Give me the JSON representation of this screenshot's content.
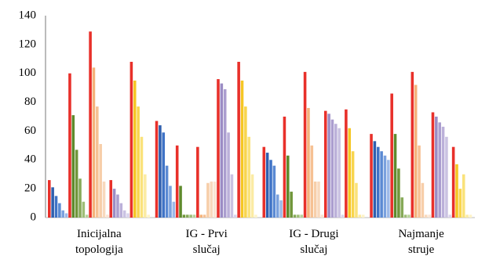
{
  "chart_data": {
    "type": "bar",
    "categories": [
      [
        "Inicijalna",
        "topologija"
      ],
      [
        "IG - Prvi",
        "slučaj"
      ],
      [
        "IG - Drugi",
        "slučaj"
      ],
      [
        "Najmanje",
        "struje"
      ]
    ],
    "ylim": [
      0,
      140
    ],
    "yticks": [
      0,
      20,
      40,
      60,
      80,
      100,
      120,
      140
    ],
    "grid": false,
    "series": [
      {
        "color": "#e8302a",
        "values": [
          26,
          67,
          49,
          58
        ]
      },
      {
        "color": "#2f5fae",
        "values": [
          21,
          64,
          45,
          53
        ]
      },
      {
        "color": "#3f73c6",
        "values": [
          15,
          59,
          40,
          49
        ]
      },
      {
        "color": "#5b8ad3",
        "values": [
          10,
          36,
          36,
          46
        ]
      },
      {
        "color": "#7aa1de",
        "values": [
          5,
          22,
          16,
          43
        ]
      },
      {
        "color": "#9cb9e8",
        "values": [
          3,
          11,
          12,
          40
        ]
      },
      {
        "color": "#e8302a",
        "values": [
          100,
          50,
          70,
          86
        ]
      },
      {
        "color": "#5e8a2c",
        "values": [
          71,
          22,
          43,
          58
        ]
      },
      {
        "color": "#70963a",
        "values": [
          47,
          2,
          18,
          34
        ]
      },
      {
        "color": "#86a958",
        "values": [
          27,
          2,
          2,
          14
        ]
      },
      {
        "color": "#9ebd76",
        "values": [
          11,
          2,
          2,
          2
        ]
      },
      {
        "color": "#b8d199",
        "values": [
          2,
          2,
          2,
          2
        ]
      },
      {
        "color": "#e8302a",
        "values": [
          129,
          49,
          101,
          101
        ]
      },
      {
        "color": "#f5b27a",
        "values": [
          104,
          2,
          76,
          92
        ]
      },
      {
        "color": "#f6c193",
        "values": [
          77,
          2,
          50,
          50
        ]
      },
      {
        "color": "#f7cea9",
        "values": [
          51,
          24,
          25,
          24
        ]
      },
      {
        "color": "#f8d9bd",
        "values": [
          25,
          25,
          25,
          2
        ]
      },
      {
        "color": "#fae4d2",
        "values": [
          2,
          25,
          2,
          2
        ]
      },
      {
        "color": "#e8302a",
        "values": [
          26,
          96,
          74,
          73
        ]
      },
      {
        "color": "#9b8cc4",
        "values": [
          20,
          93,
          72,
          70
        ]
      },
      {
        "color": "#ab9ecf",
        "values": [
          16,
          89,
          68,
          66
        ]
      },
      {
        "color": "#bbb0d9",
        "values": [
          10,
          59,
          65,
          63
        ]
      },
      {
        "color": "#cac2e2",
        "values": [
          5,
          30,
          62,
          56
        ]
      },
      {
        "color": "#d9d3eb",
        "values": [
          3,
          2,
          2,
          2
        ]
      },
      {
        "color": "#e8302a",
        "values": [
          108,
          108,
          75,
          49
        ]
      },
      {
        "color": "#f5c623",
        "values": [
          95,
          95,
          62,
          37
        ]
      },
      {
        "color": "#f8d54d",
        "values": [
          77,
          77,
          46,
          20
        ]
      },
      {
        "color": "#fae27a",
        "values": [
          56,
          56,
          24,
          30
        ]
      },
      {
        "color": "#fbeba3",
        "values": [
          30,
          30,
          2,
          2
        ]
      },
      {
        "color": "#fdf3c8",
        "values": [
          2,
          2,
          2,
          2
        ]
      }
    ]
  }
}
